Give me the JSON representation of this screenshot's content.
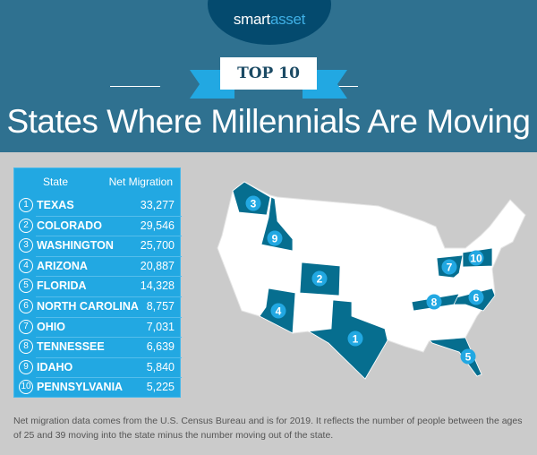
{
  "brand": {
    "logo_part1": "smart",
    "logo_part2": "asset"
  },
  "badge": "TOP 10",
  "title": "States Where Millennials Are Moving",
  "table": {
    "headers": [
      "State",
      "Net Migration"
    ],
    "rows": [
      {
        "rank": "1",
        "state": "TEXAS",
        "value": "33,277"
      },
      {
        "rank": "2",
        "state": "COLORADO",
        "value": "29,546"
      },
      {
        "rank": "3",
        "state": "WASHINGTON",
        "value": "25,700"
      },
      {
        "rank": "4",
        "state": "ARIZONA",
        "value": "20,887"
      },
      {
        "rank": "5",
        "state": "FLORIDA",
        "value": "14,328"
      },
      {
        "rank": "6",
        "state": "NORTH CAROLINA",
        "value": "8,757"
      },
      {
        "rank": "7",
        "state": "OHIO",
        "value": "7,031"
      },
      {
        "rank": "8",
        "state": "TENNESSEE",
        "value": "6,639"
      },
      {
        "rank": "9",
        "state": "IDAHO",
        "value": "5,840"
      },
      {
        "rank": "10",
        "state": "PENNSYLVANIA",
        "value": "5,225"
      }
    ]
  },
  "map": {
    "highlight_color": "#066e8f",
    "marker_color": "#22a8e2",
    "base_color": "#ffffff"
  },
  "note": "Net migration data comes from the U.S. Census Bureau and is for 2019. It reflects the number of people between the ages of 25 and 39 moving into the state minus the number moving out of the state."
}
